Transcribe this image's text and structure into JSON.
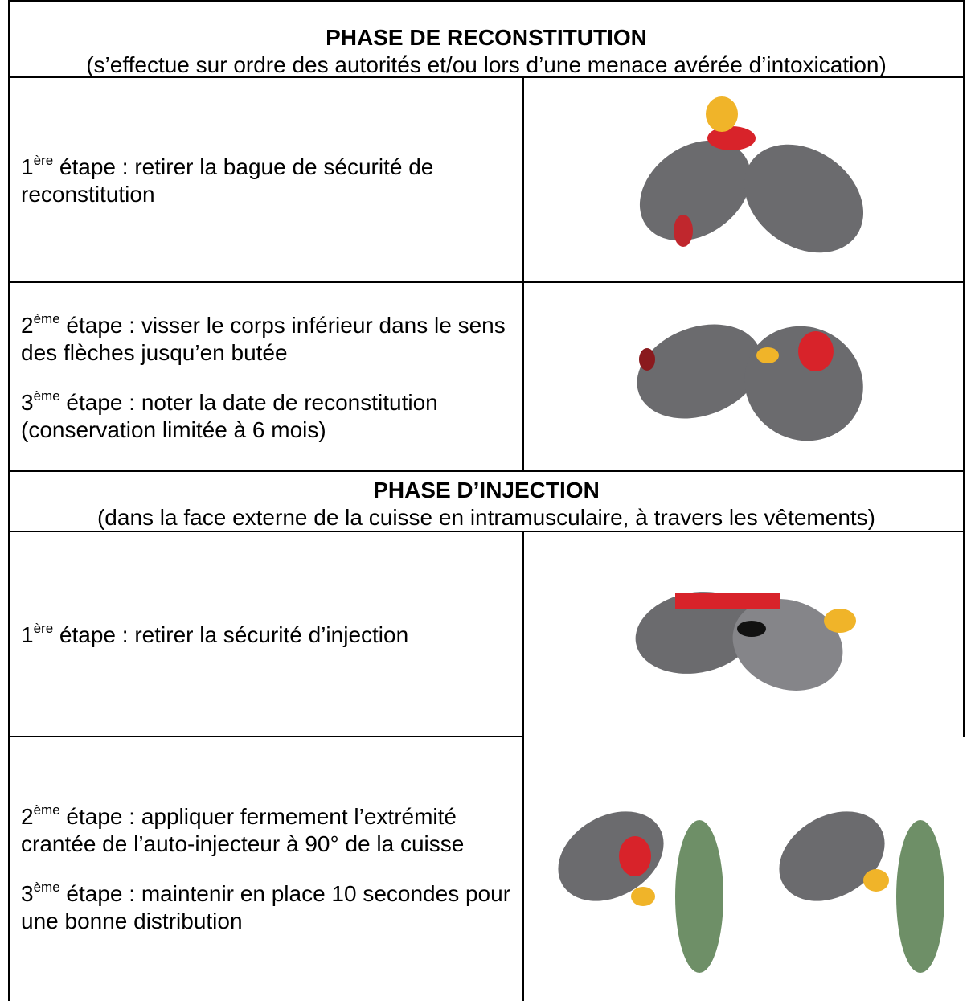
{
  "sections": [
    {
      "title": "PHASE DE RECONSTITUTION",
      "subtitle": "(s’effectue sur ordre des autorités et/ou lors d’une menace avérée d’intoxication)",
      "rows": [
        {
          "steps": [
            {
              "num": "1",
              "sup": "ère",
              "text": " étape : retirer la bague de sécurité de reconstitution"
            }
          ]
        },
        {
          "steps": [
            {
              "num": "2",
              "sup": "ème",
              "text": " étape : visser le corps inférieur dans le sens des flèches jusqu’en butée"
            },
            {
              "num": "3",
              "sup": "ème",
              "text": " étape : noter la date de reconstitution (conservation limitée à 6 mois)"
            }
          ]
        }
      ]
    },
    {
      "title": "PHASE D’INJECTION",
      "subtitle": "(dans la face externe de la cuisse en intramusculaire, à travers les vêtements)",
      "rows": [
        {
          "steps": [
            {
              "num": "1",
              "sup": "ère",
              "text": " étape : retirer la sécurité d’injection"
            }
          ]
        },
        {
          "steps": [
            {
              "num": "2",
              "sup": "ème",
              "text": " étape : appliquer fermement l’extrémité crantée de l’auto-injecteur à 90° de la cuisse"
            },
            {
              "num": "3",
              "sup": "ème",
              "text": " étape : maintenir en place 10 secondes pour une bonne distribution"
            }
          ]
        }
      ]
    }
  ]
}
